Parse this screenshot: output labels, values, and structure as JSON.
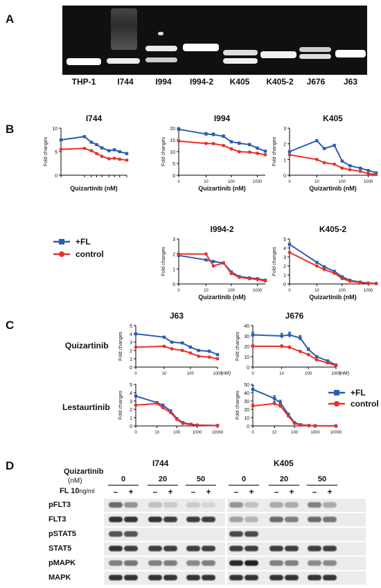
{
  "panels": {
    "a": "A",
    "b": "B",
    "c": "C",
    "d": "D"
  },
  "gel": {
    "lanes": [
      "THP-1",
      "I744",
      "I994",
      "I994-2",
      "K405",
      "K405-2",
      "J676",
      "J63"
    ]
  },
  "legend": {
    "fl": "+FL",
    "control": "control",
    "fl_color": "#2a5db0",
    "control_color": "#e8302a"
  },
  "chart_data": [
    {
      "type": "line",
      "title": "I744",
      "xlabel": "Quizartinib (nM)",
      "ylabel": "Fold changes",
      "x": [
        0,
        20,
        50,
        100,
        200,
        500,
        1000,
        2000,
        5000
      ],
      "yticks": [
        "0",
        "5",
        "10"
      ],
      "series": [
        {
          "name": "+FL",
          "values": [
            7.5,
            8.2,
            7.0,
            6.5,
            5.8,
            5.2,
            5.4,
            5.0,
            4.6
          ]
        },
        {
          "name": "control",
          "values": [
            5.5,
            5.7,
            5.2,
            4.6,
            4.0,
            3.5,
            3.6,
            3.4,
            3.2
          ]
        }
      ]
    },
    {
      "type": "line",
      "title": "I994",
      "xlabel": "Quizartinib (nM)",
      "ylabel": "Fold changes",
      "x": [
        0,
        10,
        20,
        50,
        100,
        200,
        500,
        1000,
        2000
      ],
      "yticks": [
        "0",
        "5",
        "10",
        "15",
        "20"
      ],
      "xticks": [
        "0",
        "10",
        "100",
        "1000"
      ],
      "series": [
        {
          "name": "+FL",
          "values": [
            19.5,
            17.5,
            17.3,
            16.5,
            14.2,
            13.6,
            13.0,
            11.5,
            10.2
          ]
        },
        {
          "name": "control",
          "values": [
            14.5,
            13.5,
            13.4,
            12.6,
            11.2,
            10.0,
            9.8,
            9.3,
            8.7
          ]
        }
      ]
    },
    {
      "type": "line",
      "title": "K405",
      "xlabel": "Quizartinib (nM)",
      "ylabel": "Fold changes",
      "x": [
        0,
        10,
        20,
        50,
        100,
        200,
        500,
        1000,
        2000
      ],
      "yticks": [
        "0",
        "1",
        "2",
        "3"
      ],
      "xticks": [
        "0",
        "10",
        "100",
        "1000"
      ],
      "series": [
        {
          "name": "+FL",
          "values": [
            1.5,
            2.2,
            1.7,
            1.9,
            0.9,
            0.6,
            0.45,
            0.3,
            0.15
          ]
        },
        {
          "name": "control",
          "values": [
            1.3,
            1.0,
            0.8,
            0.7,
            0.45,
            0.35,
            0.25,
            0.1,
            0.05
          ]
        }
      ]
    },
    {
      "type": "line",
      "title": "I994-2",
      "xlabel": "Quizartinib (nM)",
      "ylabel": "Fold changes",
      "x": [
        0,
        10,
        20,
        50,
        100,
        200,
        500,
        1000,
        2000
      ],
      "yticks": [
        "0",
        "1",
        "2",
        "3"
      ],
      "xticks": [
        "0",
        "10",
        "100",
        "1000"
      ],
      "series": [
        {
          "name": "+FL",
          "values": [
            1.9,
            1.6,
            1.5,
            1.4,
            0.8,
            0.5,
            0.4,
            0.35,
            0.25
          ]
        },
        {
          "name": "control",
          "values": [
            2.0,
            2.0,
            1.2,
            1.4,
            0.7,
            0.45,
            0.35,
            0.3,
            0.2
          ]
        }
      ]
    },
    {
      "type": "line",
      "title": "K405-2",
      "xlabel": "Quizartinib (nM)",
      "ylabel": "Fold changes",
      "x": [
        0,
        10,
        20,
        50,
        100,
        200,
        500,
        1000,
        2000
      ],
      "yticks": [
        "0",
        "1",
        "2",
        "3",
        "4",
        "5"
      ],
      "xticks": [
        "0",
        "10",
        "100",
        "1000"
      ],
      "series": [
        {
          "name": "+FL",
          "values": [
            4.4,
            2.4,
            1.9,
            1.4,
            0.8,
            0.4,
            0.2,
            0.1,
            0.05
          ]
        },
        {
          "name": "control",
          "values": [
            3.5,
            2.0,
            1.6,
            1.2,
            0.6,
            0.3,
            0.15,
            0.08,
            0.03
          ]
        }
      ]
    },
    {
      "type": "line",
      "title": "J63",
      "xlabel": "(nM)",
      "ylabel": "Fold changes",
      "x": [
        0,
        10,
        20,
        50,
        100,
        200,
        500,
        1000
      ],
      "yticks": [
        "0",
        "1",
        "2",
        "3",
        "4",
        "5"
      ],
      "xticks": [
        "0",
        "10",
        "100",
        "1000"
      ],
      "series": [
        {
          "name": "+FL",
          "values": [
            4.0,
            3.6,
            3.0,
            2.9,
            2.4,
            2.0,
            1.9,
            1.5
          ]
        },
        {
          "name": "control",
          "values": [
            2.4,
            2.5,
            2.2,
            2.0,
            1.7,
            1.3,
            1.2,
            1.0
          ]
        }
      ]
    },
    {
      "type": "line",
      "title": "J676",
      "xlabel": "(nM)",
      "ylabel": "Fold changes",
      "x": [
        0,
        10,
        20,
        50,
        100,
        200,
        500,
        1000
      ],
      "yticks": [
        "0",
        "10",
        "20",
        "30",
        "40"
      ],
      "xticks": [
        "0",
        "10",
        "100",
        "1000"
      ],
      "series": [
        {
          "name": "+FL",
          "values": [
            31,
            30,
            31,
            28,
            17,
            10,
            6,
            2
          ]
        },
        {
          "name": "control",
          "values": [
            20,
            20,
            19,
            15,
            12,
            7,
            4,
            1.5
          ]
        }
      ]
    },
    {
      "type": "line",
      "title": "",
      "xlabel": "",
      "ylabel": "Fold changes",
      "x": [
        0,
        10,
        20,
        50,
        100,
        200,
        500,
        1000,
        10000
      ],
      "yticks": [
        "0",
        "1",
        "2",
        "3",
        "4",
        "5"
      ],
      "xticks": [
        "0",
        "10",
        "100",
        "1000",
        "10000"
      ],
      "series": [
        {
          "name": "+FL",
          "values": [
            3.6,
            2.8,
            2.5,
            1.8,
            0.9,
            0.4,
            0.2,
            0.1,
            0.05
          ]
        },
        {
          "name": "control",
          "values": [
            2.5,
            2.7,
            2.2,
            1.6,
            0.8,
            0.3,
            0.15,
            0.08,
            0.03
          ]
        }
      ]
    },
    {
      "type": "line",
      "title": "",
      "xlabel": "",
      "ylabel": "Fold changes",
      "x": [
        0,
        10,
        20,
        50,
        100,
        200,
        500,
        1000,
        10000
      ],
      "yticks": [
        "0",
        "10",
        "20",
        "30",
        "40",
        "50"
      ],
      "xticks": [
        "0",
        "10",
        "100",
        "1000",
        "10000"
      ],
      "series": [
        {
          "name": "+FL",
          "values": [
            44,
            33,
            28,
            14,
            4,
            1.5,
            0.5,
            0.2,
            0.1
          ]
        },
        {
          "name": "control",
          "values": [
            24,
            27,
            24,
            12,
            3,
            1,
            0.4,
            0.2,
            0.1
          ]
        }
      ]
    }
  ],
  "panel_c": {
    "row1": "Quizartinib",
    "row2": "Lestaurtinib"
  },
  "panel_d": {
    "drug_label": "Quizartinib",
    "unit_label": "(nM)",
    "fl_label": "FL  10",
    "fl_unit": "ng/ml",
    "cell_left": "I744",
    "cell_right": "K405",
    "doses": [
      "0",
      "20",
      "50"
    ],
    "minus": "–",
    "plus": "+",
    "blots": [
      "pFLT3",
      "FLT3",
      "pSTAT5",
      "STAT5",
      "pMAPK",
      "MAPK"
    ]
  }
}
